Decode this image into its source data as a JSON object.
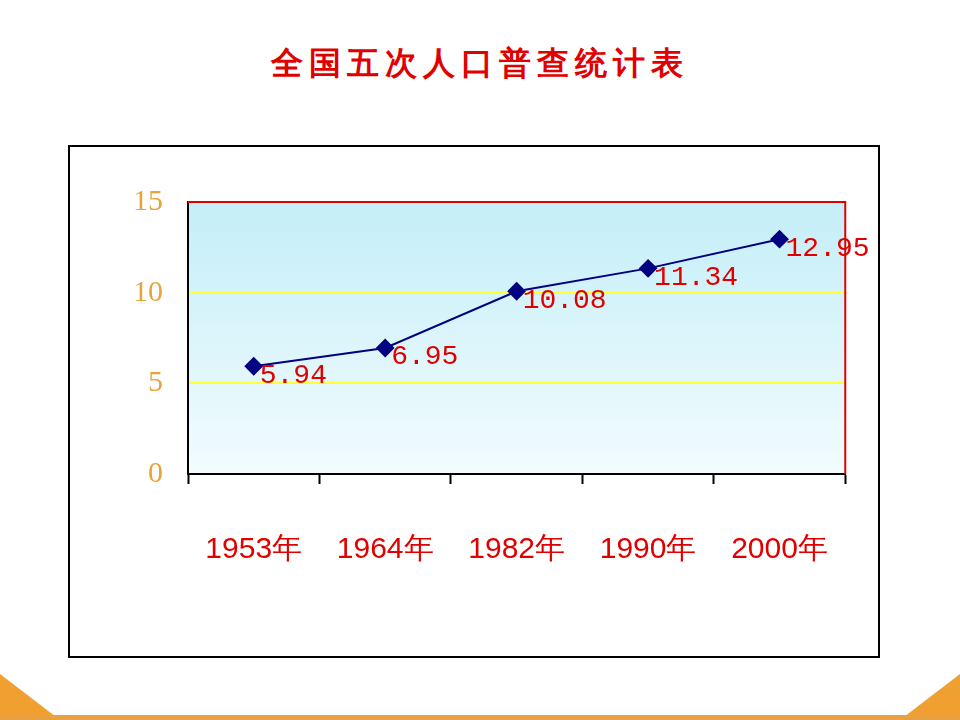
{
  "chart_data": {
    "type": "line",
    "title": "全国五次人口普查统计表",
    "categories": [
      "1953年",
      "1964年",
      "1982年",
      "1990年",
      "2000年"
    ],
    "values": [
      5.94,
      6.95,
      10.08,
      11.34,
      12.95
    ],
    "color": "#000080",
    "marker": "diamond",
    "ylim": [
      0,
      15
    ],
    "yticks": [
      0,
      5,
      10,
      15
    ],
    "grid": true,
    "data_labels": true
  }
}
